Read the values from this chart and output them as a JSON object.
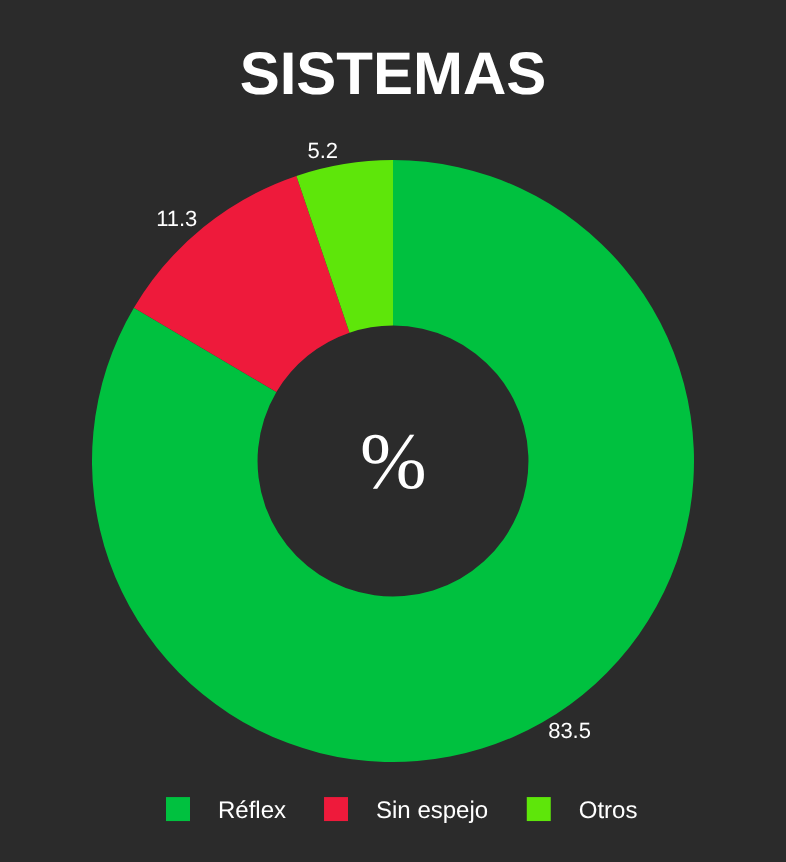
{
  "chart_data": {
    "type": "donut",
    "title": "SISTEMAS",
    "categories": [
      "Réflex",
      "Sin espejo",
      "Otros"
    ],
    "values": [
      83.5,
      11.3,
      5.2
    ],
    "colors": [
      "#00c13f",
      "#ee1a3b",
      "#5ee60a"
    ],
    "data_labels": true,
    "legend": "bottom",
    "annotations": [
      "%"
    ]
  }
}
